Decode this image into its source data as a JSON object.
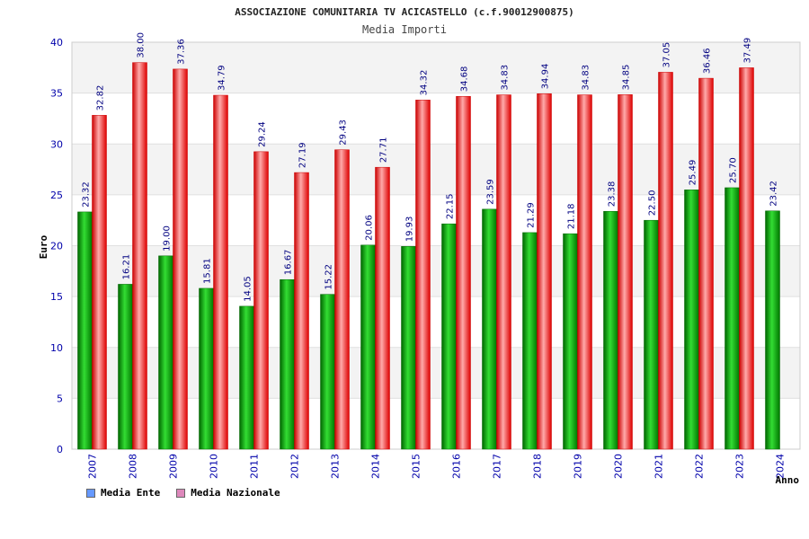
{
  "chart_data": {
    "type": "bar",
    "title": "ASSOCIAZIONE COMUNITARIA TV ACICASTELLO (c.f.90012900875)",
    "subtitle": "Media Importi",
    "xlabel": "Anno",
    "ylabel": "Euro",
    "ylim": [
      0,
      40
    ],
    "yticks": [
      "0",
      "5",
      "10",
      "15",
      "20",
      "25",
      "30",
      "35",
      "40"
    ],
    "categories": [
      "2007",
      "2008",
      "2009",
      "2010",
      "2011",
      "2012",
      "2013",
      "2014",
      "2015",
      "2016",
      "2017",
      "2018",
      "2019",
      "2020",
      "2021",
      "2022",
      "2023",
      "2024"
    ],
    "series": [
      {
        "name": "Media Ente",
        "color": "#00aa00",
        "legend_color": "#6699ff",
        "values": [
          23.32,
          16.21,
          19.0,
          15.81,
          14.05,
          16.67,
          15.22,
          20.06,
          19.93,
          22.15,
          23.59,
          21.29,
          21.18,
          23.38,
          22.5,
          25.49,
          25.7,
          23.42
        ],
        "labels": [
          "23.32",
          "16.21",
          "19.00",
          "15.81",
          "14.05",
          "16.67",
          "15.22",
          "20.06",
          "19.93",
          "22.15",
          "23.59",
          "21.29",
          "21.18",
          "23.38",
          "22.50",
          "25.49",
          "25.70",
          "23.42"
        ]
      },
      {
        "name": "Media Nazionale",
        "color": "#ee1111",
        "legend_color": "#dd88bb",
        "values": [
          32.82,
          38.0,
          37.36,
          34.79,
          29.24,
          27.19,
          29.43,
          27.71,
          34.32,
          34.68,
          34.83,
          34.94,
          34.83,
          34.85,
          37.05,
          36.46,
          37.49,
          null
        ],
        "labels": [
          "32.82",
          "38.00",
          "37.36",
          "34.79",
          "29.24",
          "27.19",
          "29.43",
          "27.71",
          "34.32",
          "34.68",
          "34.83",
          "34.94",
          "34.83",
          "34.85",
          "37.05",
          "36.46",
          "37.49",
          ""
        ]
      }
    ],
    "grid": true,
    "legend_position": "bottom-left"
  }
}
